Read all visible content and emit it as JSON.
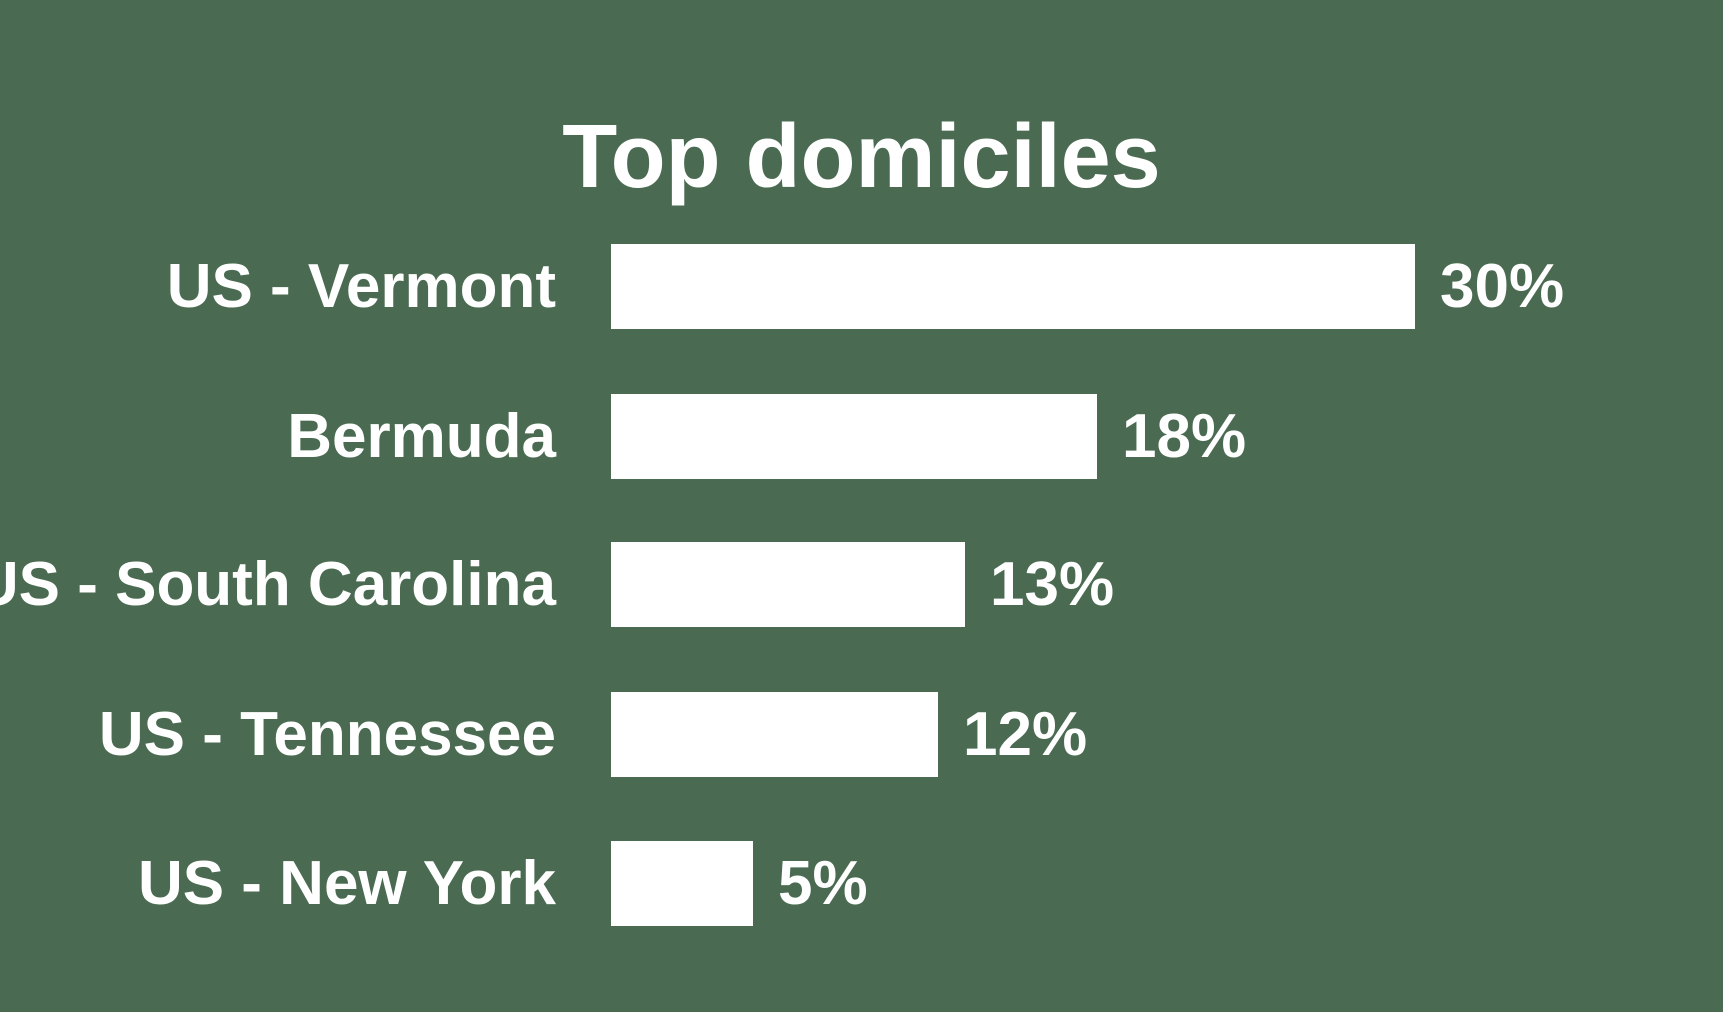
{
  "title": "Top domiciles",
  "colors": {
    "background": "#4A6B52",
    "bar": "#FFFFFF",
    "text": "#FFFFFF"
  },
  "chart_data": {
    "type": "bar",
    "orientation": "horizontal",
    "title": "Top domiciles",
    "categories": [
      "US - Vermont",
      "Bermuda",
      "US - South Carolina",
      "US - Tennessee",
      "US - New York"
    ],
    "values": [
      30,
      18,
      13,
      12,
      5
    ],
    "value_labels": [
      "30%",
      "18%",
      "13%",
      "12%",
      "5%"
    ],
    "unit": "%",
    "xlim": [
      0,
      30
    ],
    "grid": false,
    "legend": false,
    "bar_color": "#FFFFFF",
    "label_position": "outside-end"
  }
}
